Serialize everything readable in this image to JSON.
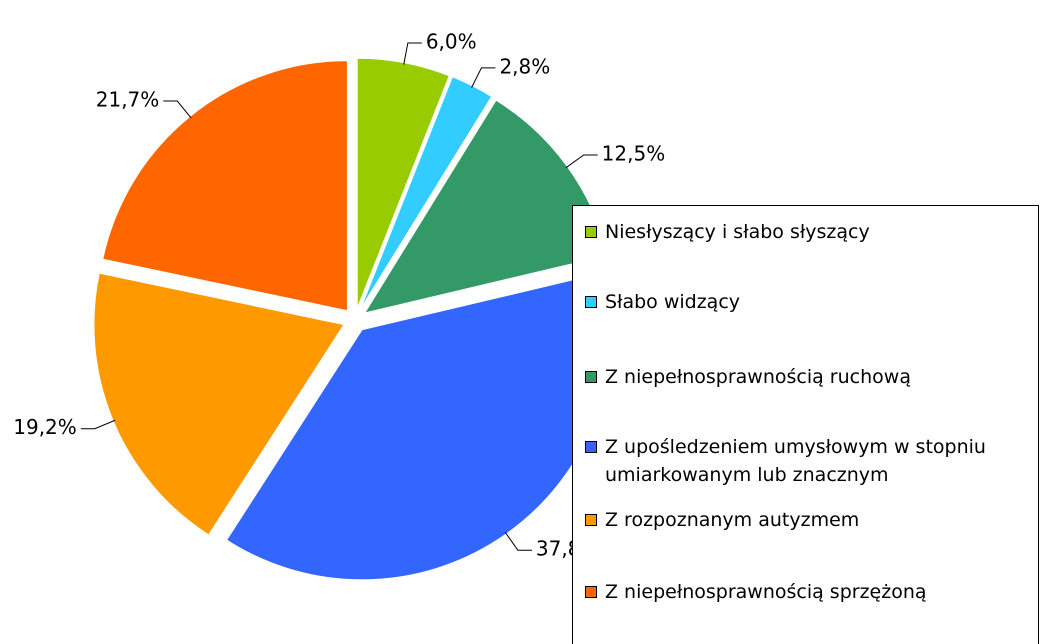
{
  "chart_data": {
    "type": "pie",
    "categories": [
      "Niesłyszący i słabo słyszący",
      "Słabo widzący",
      "Z niepełnosprawnością ruchową",
      "Z upośledzeniem umysłowym w stopniu umiarkowanym lub znacznym",
      "Z rozpoznanym autyzmem",
      "Z niepełnosprawnością sprzężoną"
    ],
    "values": [
      6.0,
      2.8,
      12.5,
      37.8,
      19.2,
      21.7
    ],
    "value_labels": [
      "6,0%",
      "2,8%",
      "12,5%",
      "37,8%",
      "19,2%",
      "21,7%"
    ],
    "colors": [
      "#99cc00",
      "#33ccff",
      "#339966",
      "#3366ff",
      "#ff9900",
      "#ff6600"
    ],
    "legend": "right"
  }
}
